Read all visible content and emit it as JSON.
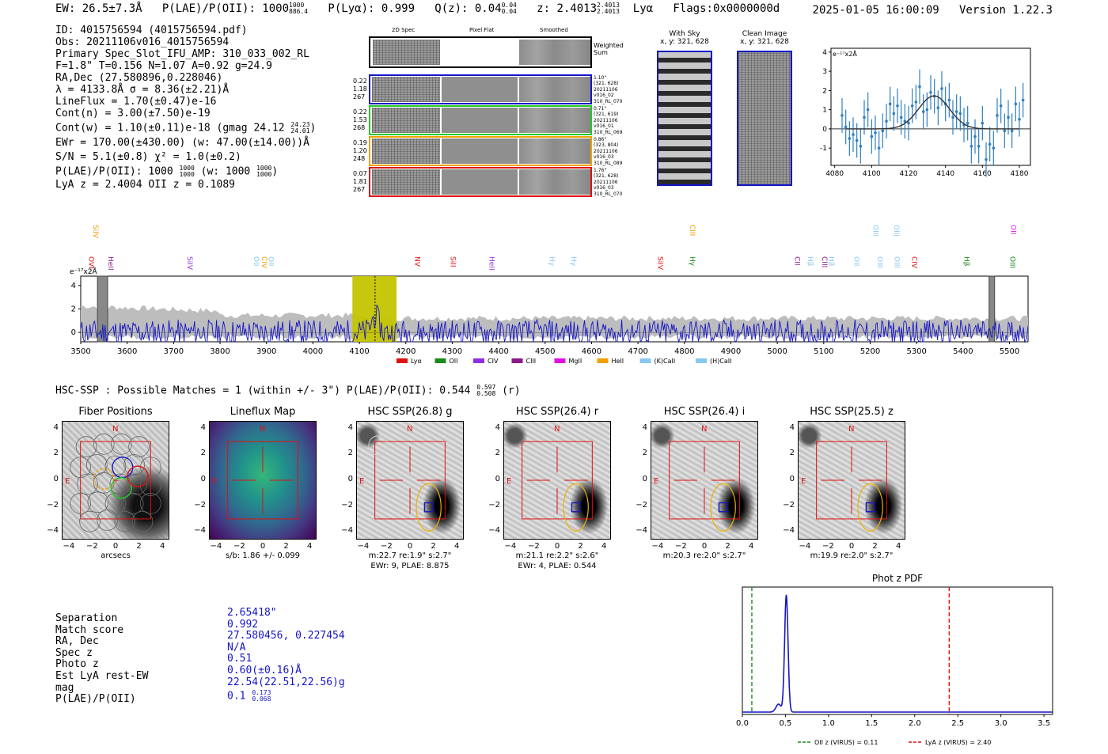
{
  "header": {
    "ew": "EW: 26.5±7.3Å",
    "plae_label": "P(LAE)/P(OII): 1000",
    "plae_hi": "1000",
    "plae_lo": "886.4",
    "plya": "P(Lyα): 0.999",
    "qz_label": "Q(z): 0.04",
    "qz_hi": "0.04",
    "qz_lo": "0.04",
    "z_label": "z: 2.4013",
    "z_hi": "2.4013",
    "z_lo": "2.4013",
    "line": "Lyα",
    "flags": "Flags:0x0000000d",
    "timestamp": "2025-01-05 16:00:09",
    "version": "Version 1.22.3"
  },
  "info": {
    "lines": [
      "ID: 4015756594 (4015756594.pdf)",
      "Obs: 20211106v016_4015756594",
      "Primary Spec_Slot_IFU_AMP: 310_033_002_RL",
      "F=1.8\"  T=0.156  N=1.07  A=0.92  g=24.9",
      "RA,Dec (27.580896,0.228046)",
      "λ = 4133.8Å  σ = 8.36(±2.21)Å",
      "LineFlux = 1.70(±0.47)e-16",
      "Cont(n) = 3.00(±7.50)e-19"
    ],
    "contw": "Cont(w) = 1.10(±0.11)e-18 (gmag 24.12",
    "contw_hi": "24.23",
    "contw_lo": "24.01",
    "lines2": [
      "EWr = 170.00(±430.00) (w: 47.00(±14.00))Å",
      "S/N = 5.1(±0.8)  χ² = 1.0(±0.2)"
    ],
    "plae2": "P(LAE)/P(OII): 1000",
    "plae2_frac_hi": "1000",
    "plae2_frac_lo": "1000",
    "plae2_w": "(w: 1000",
    "plae2_w_hi": "1000",
    "plae2_w_lo": "1000",
    "lya_oii": "LyA z = 2.4004   OII z = 0.1089"
  },
  "cutouts": {
    "col_labels": [
      "2D Spec",
      "Pixel Flat",
      "Smoothed"
    ],
    "weighted_sum": "Weighted\nSum",
    "rows": [
      {
        "left": [
          "0.22",
          "1.18",
          "267"
        ],
        "right": [
          "1.10\"",
          "(321, 628)",
          "20211106",
          "v016_02",
          "310_RL_070"
        ],
        "color": "#1515c8"
      },
      {
        "left": [
          "0.22",
          "1.53",
          "268"
        ],
        "right": [
          "0.71\"",
          "(321, 619)",
          "20211106",
          "v016_01",
          "310_RL_069"
        ],
        "color": "#22cc22"
      },
      {
        "left": [
          "0.19",
          "1.20",
          "248"
        ],
        "right": [
          "0.86\"",
          "(323, 804)",
          "20211106",
          "v016_03",
          "310_RL_089"
        ],
        "color": "#f0a000"
      },
      {
        "left": [
          "0.07",
          "1.81",
          "267"
        ],
        "right": [
          "1.76\"",
          "(321, 628)",
          "20211106",
          "v016_03",
          "310_RL_070"
        ],
        "color": "#e01010"
      }
    ]
  },
  "sky": {
    "with_sky_title": "With Sky",
    "with_sky_sub": "x, y: 321, 628",
    "clean_title": "Clean Image",
    "clean_sub": "x, y: 321, 628"
  },
  "chart_data": [
    {
      "id": "zoom_spectrum",
      "type": "line",
      "title": "",
      "ylabel": "e⁻¹⁷x2Å",
      "xlim": [
        4078,
        4186
      ],
      "ylim": [
        -1.9,
        4.2
      ],
      "xticks": [
        4080,
        4100,
        4120,
        4140,
        4160,
        4180
      ],
      "yticks": [
        -1,
        0,
        1,
        2,
        3,
        4
      ],
      "series": [
        {
          "name": "data",
          "x": [
            4084,
            4086,
            4088,
            4090,
            4092,
            4094,
            4096,
            4098,
            4100,
            4102,
            4104,
            4106,
            4108,
            4110,
            4112,
            4114,
            4116,
            4118,
            4120,
            4122,
            4124,
            4126,
            4128,
            4130,
            4132,
            4134,
            4136,
            4138,
            4140,
            4142,
            4144,
            4146,
            4148,
            4150,
            4152,
            4154,
            4156,
            4158,
            4160,
            4162,
            4164,
            4166,
            4168,
            4170,
            4172,
            4174,
            4176,
            4178,
            4180,
            4182
          ],
          "y": [
            0.7,
            0.1,
            -0.5,
            -0.3,
            -0.6,
            -0.9,
            0.6,
            1.0,
            -0.4,
            -0.2,
            -1.0,
            -0.1,
            0.4,
            1.3,
            0.8,
            1.2,
            0.6,
            0.4,
            0.3,
            1.2,
            1.4,
            2.2,
            0.9,
            1.0,
            1.9,
            1.7,
            1.1,
            2.1,
            1.3,
            1.5,
            0.6,
            0.9,
            0.8,
            0.2,
            0.3,
            -0.9,
            -0.4,
            -0.9,
            0.3,
            -1.6,
            -0.8,
            -1.0,
            0.7,
            1.2,
            -0.1,
            0.6,
            -0.1,
            1.3,
            0.5,
            1.5
          ],
          "err": [
            0.9,
            0.9,
            0.9,
            0.9,
            0.9,
            0.9,
            0.9,
            0.9,
            0.9,
            0.9,
            0.9,
            0.9,
            0.9,
            0.9,
            0.9,
            0.9,
            0.9,
            0.9,
            0.9,
            0.9,
            0.9,
            0.9,
            0.9,
            0.9,
            0.9,
            0.9,
            0.9,
            0.9,
            0.9,
            0.9,
            0.9,
            0.9,
            0.9,
            0.9,
            0.9,
            0.9,
            0.9,
            0.9,
            0.9,
            0.9,
            0.9,
            0.9,
            0.9,
            0.9,
            0.9,
            0.9,
            0.9,
            0.9,
            0.9,
            0.9
          ]
        },
        {
          "name": "gaussian fit",
          "center": 4133.8,
          "amp": 1.72,
          "sigma": 8.36,
          "xrange": [
            4086,
            4180
          ]
        }
      ]
    },
    {
      "id": "full_spectrum",
      "type": "line",
      "ylabel": "e⁻¹⁷x2Å",
      "xlim": [
        3500,
        5540
      ],
      "ylim": [
        -0.8,
        4.8
      ],
      "xticks": [
        3500,
        3600,
        3700,
        3800,
        3900,
        4000,
        4100,
        4200,
        4300,
        4400,
        4500,
        4600,
        4700,
        4800,
        4900,
        5000,
        5100,
        5200,
        5300,
        5400,
        5500
      ],
      "yticks": [
        0,
        2,
        4
      ],
      "highlight": [
        4085,
        4180
      ],
      "line_center": 4133.8,
      "masked": [
        [
          3536,
          3558
        ],
        [
          5456,
          5468
        ]
      ],
      "line_markers": [
        {
          "label": "SiIV",
          "x": 3527,
          "color": "#f0a000",
          "row": 0
        },
        {
          "label": "OVI",
          "x": 3518,
          "color": "#e01010",
          "row": 1
        },
        {
          "label": "HeII",
          "x": 3560,
          "color": "#8a1a8a",
          "row": 1
        },
        {
          "label": "SiIV",
          "x": 3730,
          "color": "#9030e0",
          "row": 1
        },
        {
          "label": "OII",
          "x": 3873,
          "color": "#87c8f0",
          "row": 1
        },
        {
          "label": "CIV",
          "x": 3890,
          "color": "#f0a000",
          "row": 1
        },
        {
          "label": "OII",
          "x": 3905,
          "color": "#87c8f0",
          "row": 1
        },
        {
          "label": "NV",
          "x": 4220,
          "color": "#e01010",
          "row": 1
        },
        {
          "label": "SiII",
          "x": 4297,
          "color": "#e01010",
          "row": 1
        },
        {
          "label": "HeII",
          "x": 4380,
          "color": "#9030e0",
          "row": 1
        },
        {
          "label": "Hγ",
          "x": 4510,
          "color": "#87c8f0",
          "row": 1
        },
        {
          "label": "Hγ",
          "x": 4557,
          "color": "#87c8f0",
          "row": 1
        },
        {
          "label": "SiIV",
          "x": 4743,
          "color": "#e01010",
          "row": 1
        },
        {
          "label": "CIII",
          "x": 4812,
          "color": "#f0a000",
          "row": 0
        },
        {
          "label": "Hγ",
          "x": 4812,
          "color": "#1a8a1a",
          "row": 1
        },
        {
          "label": "CII",
          "x": 5038,
          "color": "#8a1a8a",
          "row": 1
        },
        {
          "label": "Hβ",
          "x": 5066,
          "color": "#87c8f0",
          "row": 1
        },
        {
          "label": "CIII",
          "x": 5097,
          "color": "#8a1a8a",
          "row": 1
        },
        {
          "label": "Hβ",
          "x": 5111,
          "color": "#87c8f0",
          "row": 1
        },
        {
          "label": "OII",
          "x": 5166,
          "color": "#87c8f0",
          "row": 1
        },
        {
          "label": "OIII",
          "x": 5207,
          "color": "#87c8f0",
          "row": 0
        },
        {
          "label": "OIII",
          "x": 5252,
          "color": "#87c8f0",
          "row": 0
        },
        {
          "label": "OIII",
          "x": 5216,
          "color": "#87c8f0",
          "row": 1
        },
        {
          "label": "OIII",
          "x": 5253,
          "color": "#87c8f0",
          "row": 1
        },
        {
          "label": "CIV",
          "x": 5290,
          "color": "#e01010",
          "row": 1
        },
        {
          "label": "Hβ",
          "x": 5403,
          "color": "#1a8a1a",
          "row": 1
        },
        {
          "label": "OII",
          "x": 5503,
          "color": "#e010e0",
          "row": 0
        },
        {
          "label": "OIII",
          "x": 5502,
          "color": "#1a8a1a",
          "row": 1
        }
      ],
      "legend": [
        {
          "label": "Lyα",
          "color": "#e01010"
        },
        {
          "label": "OII",
          "color": "#1a8a1a"
        },
        {
          "label": "CIV",
          "color": "#9030e0"
        },
        {
          "label": "CIII",
          "color": "#8a1a8a"
        },
        {
          "label": "MgII",
          "color": "#e010e0"
        },
        {
          "label": "HeII",
          "color": "#f0a000"
        },
        {
          "label": "(K)CaII",
          "color": "#87c8f0"
        },
        {
          "label": "(H)CaII",
          "color": "#87c8f0"
        }
      ]
    },
    {
      "id": "phot_z_pdf",
      "type": "line",
      "title": "Phot z PDF",
      "xlim": [
        0,
        3.6
      ],
      "xticks": [
        0.0,
        0.5,
        1.0,
        1.5,
        2.0,
        2.5,
        3.0,
        3.5
      ],
      "peak": 0.51,
      "vlines": [
        {
          "label": "OII z (VIRUS) = 0.11",
          "x": 0.11,
          "color": "#1a8a1a"
        },
        {
          "label": "LyA z (VIRUS) = 2.40",
          "x": 2.4,
          "color": "#e01010"
        }
      ]
    }
  ],
  "hsc": {
    "header": "HSC-SSP : Possible Matches = 1 (within +/- 3\")  P(LAE)/P(OII): 0.544",
    "header_hi": "0.597",
    "header_lo": "0.508",
    "header_tail": "(r)",
    "panels": [
      {
        "title": "Fiber Positions",
        "caption1": "arcsecs",
        "caption2": ""
      },
      {
        "title": "Lineflux Map",
        "caption1": "s/b: 1.86 +/- 0.099",
        "caption2": ""
      },
      {
        "title": "HSC SSP(26.8) g",
        "caption1": "m:22.7  re:1.9\"  s:2.7\"",
        "caption2": "EWr: 9, PLAE: 8.875"
      },
      {
        "title": "HSC SSP(26.4) r",
        "caption1": "m:21.1  re:2.2\"  s:2.6\"",
        "caption2": "EWr: 4, PLAE: 0.544"
      },
      {
        "title": "HSC SSP(26.4) i",
        "caption1": "m:20.3  re:2.0\"  s:2.7\"",
        "caption2": ""
      },
      {
        "title": "HSC SSP(25.5) z",
        "caption1": "m:19.9  re:2.0\"  s:2.7\"",
        "caption2": ""
      }
    ],
    "axis_ticks": [
      "4",
      "2",
      "0",
      "−2",
      "−4"
    ],
    "x_ticks": [
      "−4",
      "−2",
      "0",
      "2",
      "4"
    ],
    "N": "N",
    "E": "E"
  },
  "match": {
    "labels": [
      "Separation",
      "Match score",
      "RA, Dec",
      "Spec z",
      "Photo z",
      "Est LyA rest-EW",
      "mag",
      "P(LAE)/P(OII)"
    ],
    "values": [
      "2.65418\"",
      "0.992",
      "27.580456, 0.227454",
      "N/A",
      "0.51",
      "0.60(±0.16)Å",
      "22.54(22.51,22.56)g"
    ],
    "plae": "0.1",
    "plae_hi": "0.173",
    "plae_lo": "0.068"
  }
}
